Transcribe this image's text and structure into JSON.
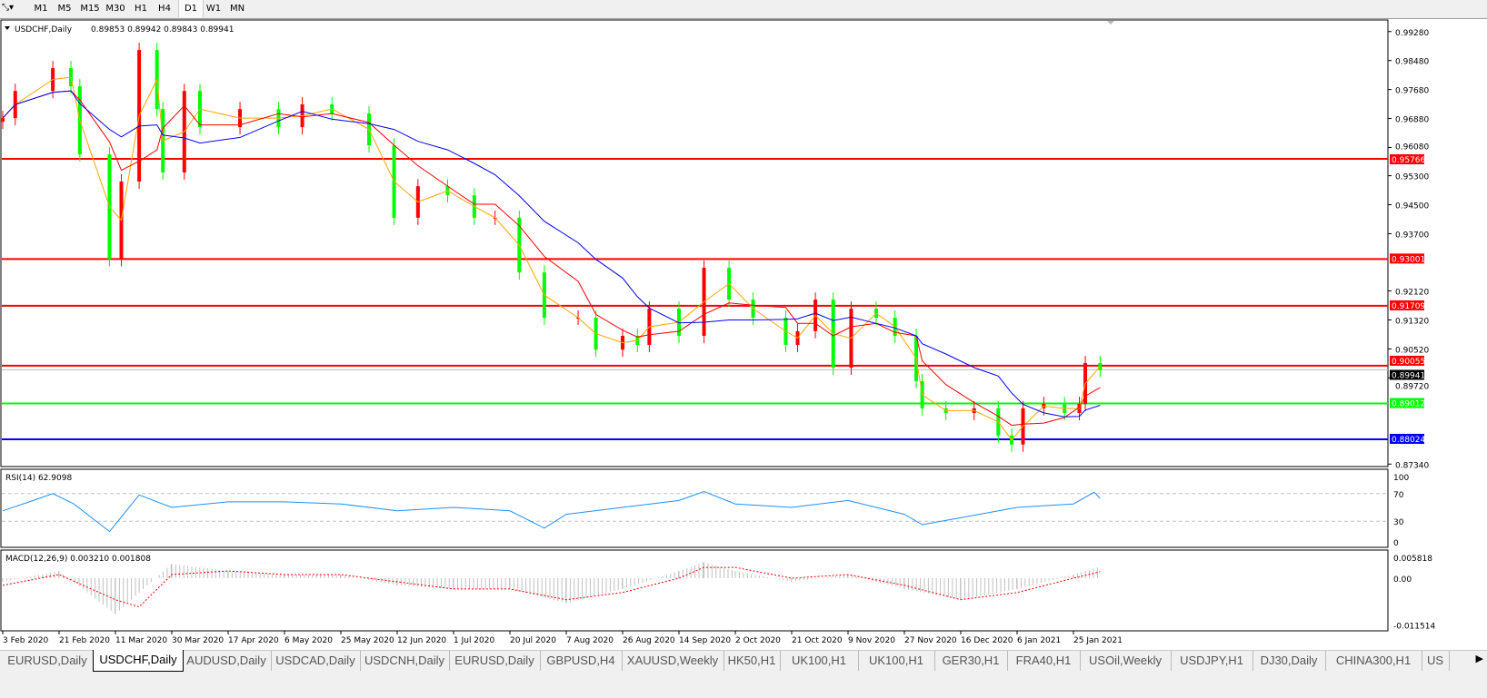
{
  "toolbar": {
    "timeframes": [
      "M1",
      "M5",
      "M15",
      "M30",
      "H1",
      "H4",
      "D1",
      "W1",
      "MN"
    ],
    "active_timeframe": "D1"
  },
  "chart_data": {
    "type": "candlestick",
    "title": "USDCHF,Daily",
    "ohlc_readout": "0.89853 0.89942 0.89843 0.89941",
    "ylim": [
      0.8734,
      0.9928
    ],
    "y_ticks": [
      "0.99280",
      "0.98480",
      "0.97680",
      "0.96880",
      "0.96080",
      "0.95300",
      "0.94500",
      "0.93700",
      "0.92120",
      "0.91320",
      "0.90520",
      "0.89720",
      "0.87340"
    ],
    "x_ticks": [
      "3 Feb 2020",
      "21 Feb 2020",
      "11 Mar 2020",
      "30 Mar 2020",
      "17 Apr 2020",
      "6 May 2020",
      "25 May 2020",
      "12 Jun 2020",
      "1 Jul 2020",
      "20 Jul 2020",
      "7 Aug 2020",
      "26 Aug 2020",
      "14 Sep 2020",
      "2 Oct 2020",
      "21 Oct 2020",
      "9 Nov 2020",
      "27 Nov 2020",
      "16 Dec 2020",
      "6 Jan 2021",
      "25 Jan 2021"
    ],
    "up_color": "#ff0000",
    "down_color": "#00ff00",
    "current_price": "0.89941",
    "closes": [
      [
        "2020-02-03",
        0.9689
      ],
      [
        "2020-02-07",
        0.9764
      ],
      [
        "2020-02-19",
        0.9827
      ],
      [
        "2020-02-25",
        0.9777
      ],
      [
        "2020-02-28",
        0.9589
      ],
      [
        "2020-03-09",
        0.93
      ],
      [
        "2020-03-13",
        0.9514
      ],
      [
        "2020-03-19",
        0.9877
      ],
      [
        "2020-03-25",
        0.9714
      ],
      [
        "2020-03-27",
        0.9539
      ],
      [
        "2020-04-03",
        0.9764
      ],
      [
        "2020-04-08",
        0.9664
      ],
      [
        "2020-04-21",
        0.9714
      ],
      [
        "2020-05-04",
        0.9664
      ],
      [
        "2020-05-12",
        0.9727
      ],
      [
        "2020-05-22",
        0.9702
      ],
      [
        "2020-06-03",
        0.9614
      ],
      [
        "2020-06-11",
        0.9414
      ],
      [
        "2020-06-19",
        0.9501
      ],
      [
        "2020-06-29",
        0.9476
      ],
      [
        "2020-07-08",
        0.9414
      ],
      [
        "2020-07-15",
        0.9414
      ],
      [
        "2020-07-23",
        0.9263
      ],
      [
        "2020-07-31",
        0.9138
      ],
      [
        "2020-08-11",
        0.9138
      ],
      [
        "2020-08-17",
        0.905
      ],
      [
        "2020-08-26",
        0.9088
      ],
      [
        "2020-08-31",
        0.9063
      ],
      [
        "2020-09-04",
        0.9163
      ],
      [
        "2020-09-14",
        0.9088
      ],
      [
        "2020-09-22",
        0.9276
      ],
      [
        "2020-09-30",
        0.9188
      ],
      [
        "2020-10-08",
        0.9138
      ],
      [
        "2020-10-19",
        0.9063
      ],
      [
        "2020-10-23",
        0.9101
      ],
      [
        "2020-10-29",
        0.9188
      ],
      [
        "2020-11-04",
        0.9
      ],
      [
        "2020-11-10",
        0.9163
      ],
      [
        "2020-11-18",
        0.9138
      ],
      [
        "2020-11-24",
        0.9088
      ],
      [
        "2020-12-01",
        0.8963
      ],
      [
        "2020-12-03",
        0.8888
      ],
      [
        "2020-12-11",
        0.8875
      ],
      [
        "2020-12-21",
        0.8888
      ],
      [
        "2020-12-30",
        0.8813
      ],
      [
        "2021-01-04",
        0.8788
      ],
      [
        "2021-01-08",
        0.8888
      ],
      [
        "2021-01-15",
        0.89
      ],
      [
        "2021-01-22",
        0.8875
      ],
      [
        "2021-01-27",
        0.89
      ],
      [
        "2021-01-29",
        0.9013
      ],
      [
        "2021-02-03",
        0.8994
      ]
    ],
    "moving_averages": [
      {
        "color": "#ffa500",
        "period_points": 2
      },
      {
        "color": "#ff0000",
        "period_points": 4
      },
      {
        "color": "#0000ff",
        "period_points": 8
      }
    ],
    "horizontal_lines": [
      {
        "price": 0.95766,
        "label": "0.95766",
        "color": "#ff0000"
      },
      {
        "price": 0.93001,
        "label": "0.93001",
        "color": "#ff0000"
      },
      {
        "price": 0.91709,
        "label": "0.91709",
        "color": "#ff0000"
      },
      {
        "price": 0.90055,
        "label": "0.90055",
        "color": "#ff0000"
      },
      {
        "price": 0.89012,
        "label": "0.89012",
        "color": "#00ff00"
      },
      {
        "price": 0.88024,
        "label": "0.88024",
        "color": "#0000ff"
      }
    ],
    "rsi": {
      "label": "RSI(14) 62.9098",
      "levels": [
        70,
        30
      ],
      "y_ticks": [
        "100",
        "70",
        "30",
        "0"
      ],
      "color": "#1e90ff",
      "values": [
        [
          "2020-02-03",
          45
        ],
        [
          "2020-02-14",
          62
        ],
        [
          "2020-02-19",
          70
        ],
        [
          "2020-02-26",
          55
        ],
        [
          "2020-03-09",
          15
        ],
        [
          "2020-03-19",
          68
        ],
        [
          "2020-03-30",
          50
        ],
        [
          "2020-04-17",
          58
        ],
        [
          "2020-05-06",
          58
        ],
        [
          "2020-05-25",
          55
        ],
        [
          "2020-06-12",
          45
        ],
        [
          "2020-07-01",
          50
        ],
        [
          "2020-07-20",
          45
        ],
        [
          "2020-07-31",
          20
        ],
        [
          "2020-08-07",
          40
        ],
        [
          "2020-08-26",
          50
        ],
        [
          "2020-09-14",
          60
        ],
        [
          "2020-09-22",
          73
        ],
        [
          "2020-10-02",
          55
        ],
        [
          "2020-10-21",
          50
        ],
        [
          "2020-11-09",
          60
        ],
        [
          "2020-11-27",
          40
        ],
        [
          "2020-12-03",
          25
        ],
        [
          "2020-12-16",
          35
        ],
        [
          "2021-01-06",
          50
        ],
        [
          "2021-01-25",
          55
        ],
        [
          "2021-02-01",
          72
        ],
        [
          "2021-02-03",
          62.9
        ]
      ]
    },
    "macd": {
      "label": "MACD(12,26,9) 0.003210 0.001808",
      "y_ticks": [
        "0.005818",
        "0.00",
        "-0.011514"
      ],
      "histogram_color": "#c0c0c0",
      "signal_color": "#ff0000",
      "values": [
        [
          "2020-02-03",
          -0.001,
          -0.002
        ],
        [
          "2020-02-21",
          0.002,
          0.001
        ],
        [
          "2020-03-11",
          -0.01,
          -0.006
        ],
        [
          "2020-03-19",
          -0.004,
          -0.008
        ],
        [
          "2020-03-30",
          0.004,
          0.001
        ],
        [
          "2020-04-17",
          0.002,
          0.002
        ],
        [
          "2020-05-06",
          0.001,
          0.001
        ],
        [
          "2020-05-25",
          0.001,
          0.001
        ],
        [
          "2020-06-12",
          -0.002,
          -0.001
        ],
        [
          "2020-07-01",
          -0.003,
          -0.003
        ],
        [
          "2020-07-20",
          -0.003,
          -0.003
        ],
        [
          "2020-08-07",
          -0.007,
          -0.006
        ],
        [
          "2020-08-26",
          -0.003,
          -0.004
        ],
        [
          "2020-09-14",
          0.002,
          0.0
        ],
        [
          "2020-09-22",
          0.0045,
          0.003
        ],
        [
          "2020-10-02",
          0.002,
          0.003
        ],
        [
          "2020-10-21",
          -0.001,
          0.0
        ],
        [
          "2020-11-09",
          0.001,
          0.001
        ],
        [
          "2020-11-27",
          -0.003,
          -0.002
        ],
        [
          "2020-12-16",
          -0.006,
          -0.006
        ],
        [
          "2021-01-06",
          -0.003,
          -0.004
        ],
        [
          "2021-01-25",
          0.001,
          0.0
        ],
        [
          "2021-02-03",
          0.00321,
          0.001808
        ]
      ]
    }
  },
  "tabs": [
    "EURUSD,Daily",
    "USDCHF,Daily",
    "AUDUSD,Daily",
    "USDCAD,Daily",
    "USDCNH,Daily",
    "EURUSD,Daily",
    "GBPUSD,H4",
    "XAUUSD,Weekly",
    "HK50,H1",
    "UK100,H1",
    "UK100,H1",
    "GER30,H1",
    "FRA40,H1",
    "USOil,Weekly",
    "USDJPY,H1",
    "DJ30,Daily",
    "CHINA300,H1",
    "US"
  ],
  "active_tab": "USDCHF,Daily"
}
